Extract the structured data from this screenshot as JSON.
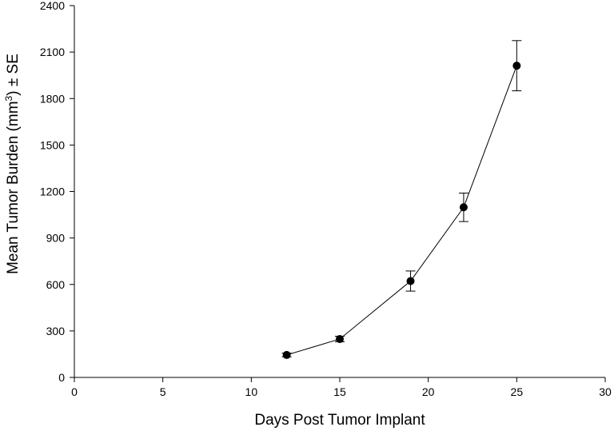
{
  "chart_data": {
    "type": "line",
    "title": "",
    "xlabel": "Days Post Tumor Implant",
    "ylabel": {
      "prefix": "Mean Tumor Burden (mm",
      "superscript": "3",
      "suffix": ") ± SE"
    },
    "xlim": [
      0,
      30
    ],
    "ylim": [
      0,
      2400
    ],
    "xticks": [
      0,
      5,
      10,
      15,
      20,
      25,
      30
    ],
    "yticks": [
      0,
      300,
      600,
      900,
      1200,
      1500,
      1800,
      2100,
      2400
    ],
    "grid": false,
    "series": [
      {
        "name": "Mean Tumor Burden",
        "x": [
          12,
          15,
          19,
          22,
          25
        ],
        "y": [
          145,
          248,
          622,
          1098,
          2012
        ],
        "se": [
          12,
          18,
          65,
          92,
          162
        ],
        "color": "#000000"
      }
    ]
  }
}
